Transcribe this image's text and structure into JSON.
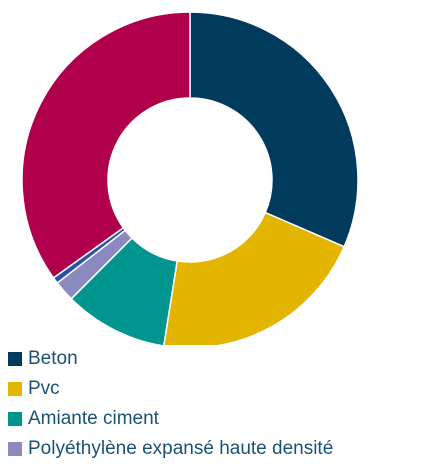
{
  "chart_data": {
    "type": "pie",
    "variant": "donut",
    "legend_position": "bottom-left",
    "categories": [
      "Beton",
      "Pvc",
      "Amiante ciment",
      "Polyéthylène expansé haute densité",
      "",
      ""
    ],
    "values": [
      31.5,
      21.0,
      10.0,
      2.0,
      0.6,
      34.9
    ],
    "colors": [
      "#003a5c",
      "#e2b600",
      "#00968f",
      "#8a8ac0",
      "#2b4fa8",
      "#b0004c"
    ],
    "legend_entries": [
      "Beton",
      "Pvc",
      "Amiante ciment",
      "Polyéthylène expansé haute densité"
    ]
  }
}
